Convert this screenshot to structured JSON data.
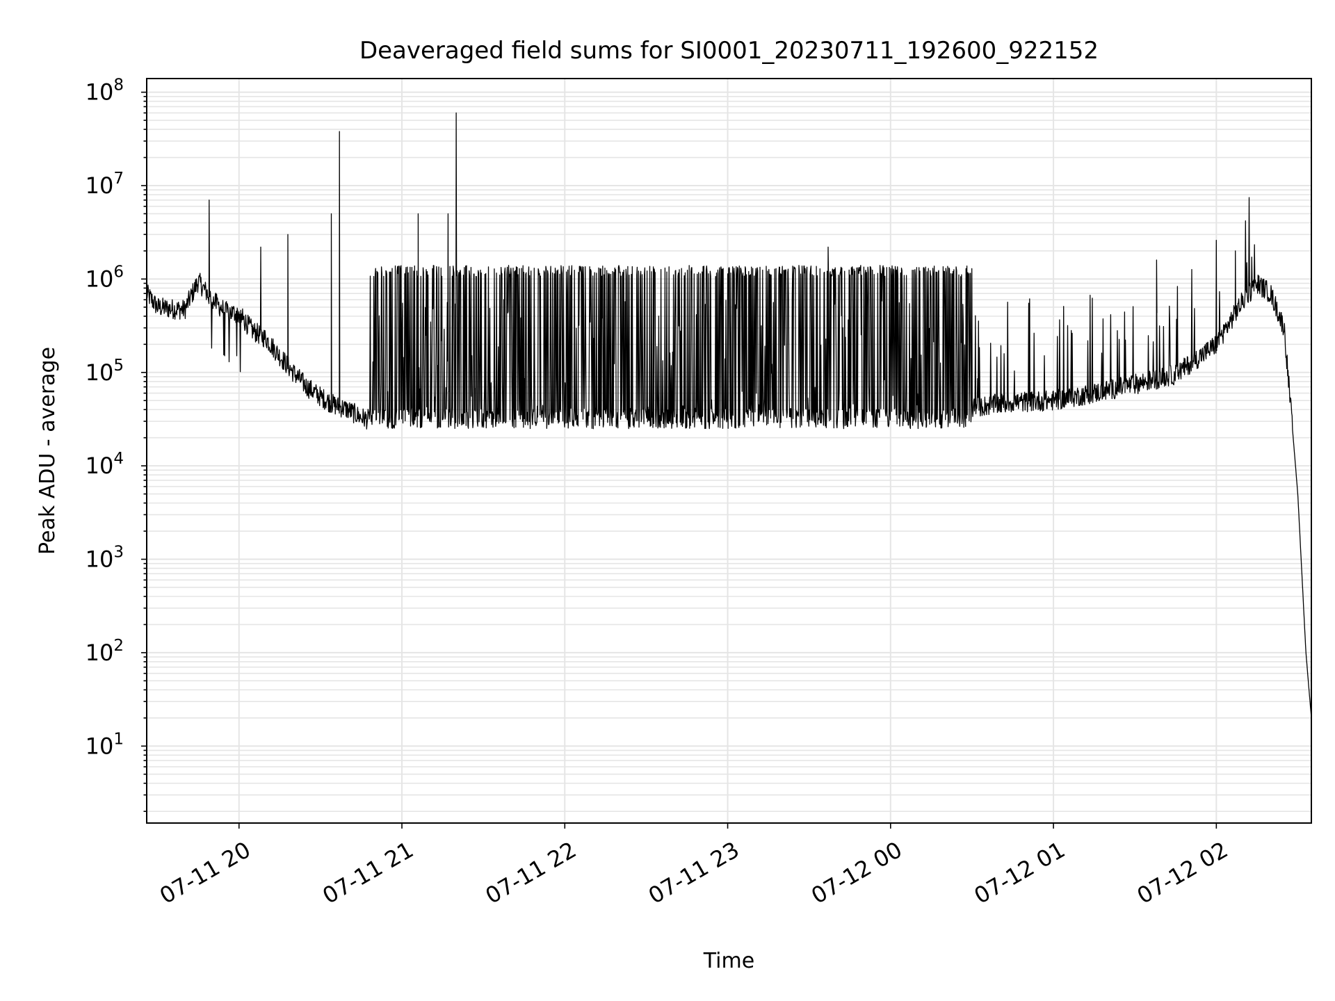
{
  "chart_data": {
    "type": "line",
    "title": "Deaveraged field sums for SI0001_20230711_192600_922152",
    "xlabel": "Time",
    "ylabel": "Peak ADU - average",
    "yscale": "log",
    "xlim": [
      "07-11 19:26",
      "07-12 02:35"
    ],
    "ylim": [
      1.5,
      140000000
    ],
    "grid": true,
    "line_color": "#000000",
    "grid_color": "#e5e5e5",
    "x_ticks": [
      "07-11 20",
      "07-11 21",
      "07-11 22",
      "07-11 23",
      "07-12 00",
      "07-12 01",
      "07-12 02"
    ],
    "y_ticks": [
      {
        "exp": "1",
        "value": 10
      },
      {
        "exp": "2",
        "value": 100
      },
      {
        "exp": "3",
        "value": 1000
      },
      {
        "exp": "4",
        "value": 10000
      },
      {
        "exp": "5",
        "value": 100000
      },
      {
        "exp": "6",
        "value": 1000000
      },
      {
        "exp": "7",
        "value": 10000000
      },
      {
        "exp": "8",
        "value": 100000000
      }
    ],
    "series": [
      {
        "x": [
          "07-11 19:26",
          "07-11 19:30",
          "07-11 19:35",
          "07-11 19:40",
          "07-11 19:45",
          "07-11 19:50",
          "07-11 19:55",
          "07-11 20:00",
          "07-11 20:05",
          "07-11 20:10",
          "07-11 20:15",
          "07-11 20:20",
          "07-11 20:25",
          "07-11 20:30",
          "07-11 20:35",
          "07-11 20:40",
          "07-11 20:45",
          "07-11 20:50",
          "07-11 21:00",
          "07-11 21:10",
          "07-11 21:20",
          "07-11 21:30",
          "07-11 21:45",
          "07-11 22:00",
          "07-11 22:15",
          "07-11 22:30",
          "07-11 22:45",
          "07-11 23:00",
          "07-11 23:15",
          "07-11 23:30",
          "07-11 23:45",
          "07-12 00:00",
          "07-12 00:15",
          "07-12 00:30",
          "07-12 00:45",
          "07-12 01:00",
          "07-12 01:15",
          "07-12 01:30",
          "07-12 01:45",
          "07-12 02:00",
          "07-12 02:10",
          "07-12 02:15",
          "07-12 02:20",
          "07-12 02:25",
          "07-12 02:30",
          "07-12 02:33",
          "07-12 02:35"
        ],
        "y": [
          700000,
          500000,
          480000,
          470000,
          950000,
          600000,
          450000,
          420000,
          280000,
          230000,
          150000,
          100000,
          70000,
          55000,
          45000,
          40000,
          33000,
          30000,
          29000,
          30000,
          32000,
          33000,
          34000,
          35000,
          36000,
          37000,
          38000,
          38000,
          37000,
          36000,
          35000,
          36000,
          38000,
          42000,
          48000,
          50000,
          60000,
          75000,
          95000,
          200000,
          600000,
          900000,
          700000,
          300000,
          5000,
          100,
          20
        ]
      }
    ],
    "spikes": [
      {
        "x": "07-11 19:49",
        "y": 7000000
      },
      {
        "x": "07-11 20:08",
        "y": 2200000
      },
      {
        "x": "07-11 20:18",
        "y": 3000000
      },
      {
        "x": "07-11 20:34",
        "y": 5000000
      },
      {
        "x": "07-11 20:37",
        "y": 38000000
      },
      {
        "x": "07-11 21:06",
        "y": 5000000
      },
      {
        "x": "07-11 21:17",
        "y": 5000000
      },
      {
        "x": "07-11 21:20",
        "y": 60000000
      },
      {
        "x": "07-11 23:37",
        "y": 2200000
      },
      {
        "x": "07-12 01:38",
        "y": 1600000
      },
      {
        "x": "07-12 02:00",
        "y": 2600000
      },
      {
        "x": "07-12 02:07",
        "y": 2000000
      }
    ],
    "high_state": {
      "x_range": [
        "07-11 20:48",
        "07-12 00:30"
      ],
      "y_high": 1400000,
      "y_low": 25000
    }
  }
}
